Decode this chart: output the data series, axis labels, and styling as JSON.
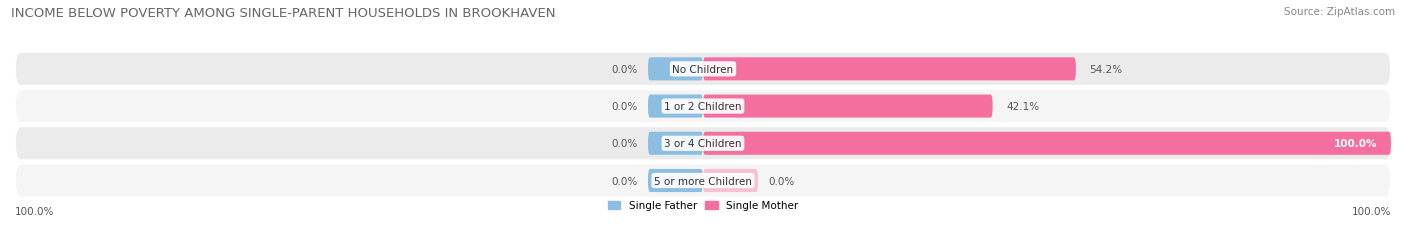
{
  "title": "INCOME BELOW POVERTY AMONG SINGLE-PARENT HOUSEHOLDS IN BROOKHAVEN",
  "source": "Source: ZipAtlas.com",
  "categories": [
    "No Children",
    "1 or 2 Children",
    "3 or 4 Children",
    "5 or more Children"
  ],
  "single_father": [
    0.0,
    0.0,
    0.0,
    0.0
  ],
  "single_mother": [
    54.2,
    42.1,
    100.0,
    0.0
  ],
  "father_color": "#8bbee0",
  "mother_color": "#f46fa0",
  "mother_color_light": "#f9c0d4",
  "title_fontsize": 9.5,
  "source_fontsize": 7.5,
  "label_fontsize": 7.5,
  "category_fontsize": 7.5,
  "axis_label_fontsize": 7.5,
  "xlim": [
    -100,
    100
  ],
  "bg_color": "#ffffff",
  "bar_height": 0.62,
  "row_bg_colors": [
    "#ebebeb",
    "#f5f5f5",
    "#ebebeb",
    "#f5f5f5"
  ]
}
